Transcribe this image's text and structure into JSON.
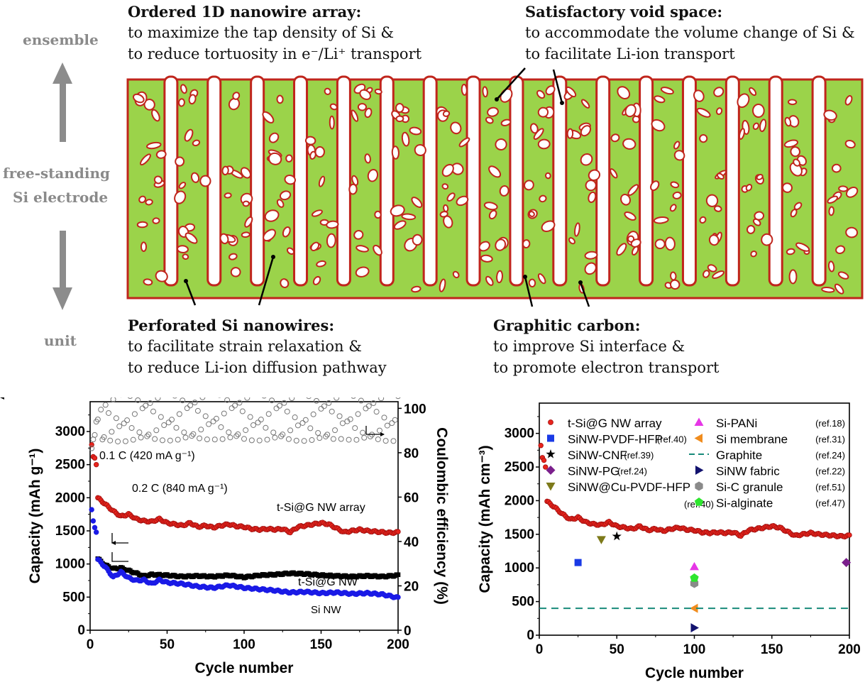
{
  "diagram": {
    "side_labels": {
      "top": "ensemble",
      "middle_1": "free-standing",
      "middle_2": "Si electrode",
      "bottom": "unit"
    },
    "callouts": [
      {
        "title": "Ordered 1D nanowire array:",
        "line1": "to maximize the tap density of Si &",
        "line2": "to reduce tortuosity in e⁻/Li⁺ transport"
      },
      {
        "title": "Satisfactory void space:",
        "line1": "to accommodate the volume change of Si &",
        "line2": "to facilitate Li-ion transport"
      },
      {
        "title": "Perforated Si nanowires:",
        "line1": "to facilitate strain relaxation &",
        "line2": "to reduce Li-ion diffusion pathway"
      },
      {
        "title": "Graphitic carbon:",
        "line1": "to improve Si interface &",
        "line2": "to promote electron transport"
      }
    ],
    "colors": {
      "silicon": "#9bd34a",
      "carbon": "#c0251c",
      "arrow": "#8c8c8c"
    }
  },
  "chart_data": [
    {
      "type": "scatter",
      "xlabel": "Cycle number",
      "ylabel": "Capacity (mAh g⁻¹)",
      "y2label": "Coulombic efficiency (%)",
      "xlim": [
        0,
        200
      ],
      "ylim": [
        0,
        3450
      ],
      "y2lim": [
        0,
        103
      ],
      "xticks": [
        0,
        50,
        100,
        150,
        200
      ],
      "yticks": [
        0,
        500,
        1000,
        1500,
        2000,
        2500,
        3000
      ],
      "y2ticks": [
        0,
        20,
        40,
        60,
        80,
        100
      ],
      "annotations": [
        "0.1 C (420 mA g⁻¹)",
        "0.2 C (840 mA g⁻¹)",
        "t-Si@G NW array",
        "t-Si@G NW",
        "Si NW"
      ],
      "series": [
        {
          "name": "t-Si@G NW array",
          "color": "#e8241c",
          "marker": "circle",
          "axis": "left",
          "x": [
            1,
            2,
            3,
            4,
            5,
            10,
            15,
            20,
            25,
            30,
            35,
            40,
            45,
            50,
            55,
            60,
            65,
            70,
            75,
            80,
            85,
            90,
            95,
            100,
            105,
            110,
            115,
            120,
            125,
            130,
            135,
            140,
            145,
            150,
            155,
            160,
            165,
            170,
            175,
            180,
            185,
            190,
            195,
            200
          ],
          "y": [
            2800,
            2620,
            2600,
            2500,
            2000,
            1900,
            1800,
            1720,
            1750,
            1680,
            1650,
            1640,
            1680,
            1620,
            1600,
            1580,
            1620,
            1560,
            1580,
            1550,
            1580,
            1600,
            1570,
            1560,
            1530,
            1520,
            1530,
            1520,
            1530,
            1480,
            1560,
            1580,
            1600,
            1620,
            1600,
            1540,
            1480,
            1500,
            1520,
            1500,
            1490,
            1480,
            1470,
            1480
          ]
        },
        {
          "name": "t-Si@G NW",
          "color": "#000000",
          "marker": "square",
          "axis": "left",
          "x": [
            5,
            10,
            15,
            20,
            25,
            30,
            35,
            40,
            50,
            60,
            70,
            80,
            90,
            100,
            110,
            120,
            130,
            140,
            150,
            160,
            170,
            180,
            190,
            200
          ],
          "y": [
            1080,
            980,
            930,
            940,
            900,
            860,
            820,
            840,
            830,
            810,
            820,
            810,
            830,
            800,
            830,
            840,
            860,
            850,
            830,
            820,
            810,
            820,
            810,
            830
          ]
        },
        {
          "name": "Si NW",
          "color": "#1a1ae6",
          "marker": "circle",
          "axis": "left",
          "x": [
            1,
            2,
            3,
            4,
            5,
            10,
            15,
            20,
            25,
            30,
            35,
            40,
            45,
            50,
            60,
            70,
            80,
            90,
            100,
            110,
            120,
            130,
            140,
            150,
            160,
            170,
            180,
            190,
            200
          ],
          "y": [
            1820,
            1650,
            1550,
            1480,
            1070,
            950,
            800,
            880,
            790,
            750,
            760,
            700,
            760,
            720,
            700,
            660,
            640,
            680,
            640,
            620,
            600,
            570,
            580,
            560,
            570,
            550,
            560,
            540,
            490
          ]
        },
        {
          "name": "Coulombic efficiency",
          "color": "#777777",
          "marker": "open-circle",
          "axis": "right",
          "x": [
            1,
            2,
            3,
            4,
            5,
            10,
            20,
            30,
            40,
            50,
            60,
            70,
            80,
            90,
            100,
            110,
            120,
            130,
            140,
            150,
            160,
            165,
            170,
            180,
            190,
            200
          ],
          "y": [
            82,
            86,
            88,
            94,
            95,
            96.5,
            97,
            97.5,
            97.3,
            97.5,
            97.4,
            97.6,
            98,
            97.5,
            97.4,
            97.5,
            97.4,
            97.3,
            97.3,
            97.2,
            97.4,
            98.5,
            97.4,
            97.3,
            97.2,
            97.3
          ]
        }
      ]
    },
    {
      "type": "scatter",
      "xlabel": "Cycle number",
      "ylabel": "Capacity (mAh cm⁻³)",
      "xlim": [
        0,
        200
      ],
      "ylim": [
        0,
        3450
      ],
      "xticks": [
        0,
        50,
        100,
        150,
        200
      ],
      "yticks": [
        0,
        500,
        1000,
        1500,
        2000,
        2500,
        3000
      ],
      "legend_position": "top",
      "series": [
        {
          "name": "t-Si@G NW array",
          "ref": "",
          "color": "#e8241c",
          "marker": "circle",
          "x": [
            1,
            2,
            3,
            4,
            5,
            10,
            15,
            20,
            25,
            30,
            35,
            40,
            45,
            50,
            55,
            60,
            65,
            70,
            75,
            80,
            85,
            90,
            95,
            100,
            105,
            110,
            115,
            120,
            125,
            130,
            135,
            140,
            145,
            150,
            155,
            160,
            165,
            170,
            175,
            180,
            185,
            190,
            195,
            200
          ],
          "y": [
            2820,
            2640,
            2600,
            2500,
            1990,
            1900,
            1800,
            1720,
            1750,
            1680,
            1650,
            1640,
            1680,
            1620,
            1600,
            1580,
            1620,
            1560,
            1580,
            1550,
            1580,
            1600,
            1570,
            1560,
            1530,
            1520,
            1530,
            1520,
            1530,
            1480,
            1560,
            1580,
            1600,
            1620,
            1600,
            1540,
            1480,
            1500,
            1520,
            1500,
            1490,
            1480,
            1470,
            1480
          ]
        },
        {
          "name": "SiNW-PVDF-HFP",
          "ref": "(ref.40)",
          "color": "#1a3ae6",
          "marker": "square",
          "x": [
            25
          ],
          "y": [
            1080
          ]
        },
        {
          "name": "SiNW-CNF",
          "ref": "(ref.39)",
          "color": "#000000",
          "marker": "star",
          "x": [
            50
          ],
          "y": [
            1470
          ]
        },
        {
          "name": "SiNW-PG",
          "ref": "(ref.24)",
          "color": "#7b1f8c",
          "marker": "diamond",
          "x": [
            198
          ],
          "y": [
            1080
          ]
        },
        {
          "name": "SiNW@Cu-PVDF-HFP",
          "ref": "(ref.40)",
          "color": "#7d7a1a",
          "marker": "triangle-down",
          "x": [
            40
          ],
          "y": [
            1420
          ]
        },
        {
          "name": "Si-PANi",
          "ref": "(ref.18)",
          "color": "#e636e6",
          "marker": "triangle-up",
          "x": [
            100
          ],
          "y": [
            1020
          ]
        },
        {
          "name": "Si membrane",
          "ref": "(ref.31)",
          "color": "#f08c1e",
          "marker": "triangle-left",
          "x": [
            100
          ],
          "y": [
            400
          ]
        },
        {
          "name": "Graphite",
          "ref": "(ref.24)",
          "color": "#178a7a",
          "marker": "dashed-line",
          "y": [
            400
          ]
        },
        {
          "name": "SiNW fabric",
          "ref": "(ref.22)",
          "color": "#12126e",
          "marker": "triangle-right",
          "x": [
            100
          ],
          "y": [
            110
          ]
        },
        {
          "name": "Si-C granule",
          "ref": "(ref.51)",
          "color": "#8a8a8a",
          "marker": "hexagon",
          "x": [
            100
          ],
          "y": [
            770
          ]
        },
        {
          "name": "Si-alginate",
          "ref": "(ref.47)",
          "color": "#2ee62e",
          "marker": "pentagon",
          "x": [
            100
          ],
          "y": [
            850
          ]
        }
      ]
    }
  ]
}
